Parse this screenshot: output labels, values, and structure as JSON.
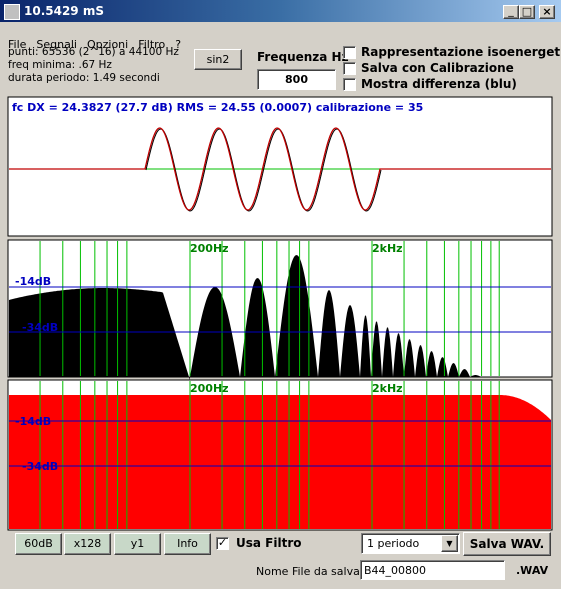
{
  "window": {
    "title": "10.5429 mS"
  },
  "menu": [
    "File",
    "Segnali",
    "Opzioni",
    "Filtro",
    "?"
  ],
  "info": [
    "punti: 65536 (2^16) a 44100 Hz",
    "freq minima: .67 Hz",
    "durata periodo: 1.49 secondi"
  ],
  "controls": {
    "waveform_button": "sin2",
    "frequency_label": "Frequenza Hz",
    "frequency_value": "800",
    "options": [
      "Rappresentazione isoenergetica",
      "Salva con Calibrazione",
      "Mostra differenza (blu)"
    ]
  },
  "panels": {
    "waveform": {
      "header": "fc DX = 24.3827 (27.7 dB) RMS = 24.55 (0.0007)  calibrazione = 35"
    },
    "spectrum": {
      "freq_labels": [
        "200Hz",
        "2kHz"
      ],
      "db_labels": [
        "-14dB",
        "-34dB"
      ]
    },
    "filter": {
      "freq_labels": [
        "200Hz",
        "2kHz"
      ],
      "db_labels": [
        "-14dB",
        "-34dB"
      ]
    }
  },
  "bottom": {
    "buttons": [
      "60dB",
      "x128",
      "y1",
      "Info"
    ],
    "filter_checkbox": "Usa Filtro",
    "period_select": "1 periodo",
    "save_button": "Salva WAV.",
    "filename_label": "Nome File da salvare",
    "filename": "B44_00800",
    "extension": ".WAV"
  }
}
